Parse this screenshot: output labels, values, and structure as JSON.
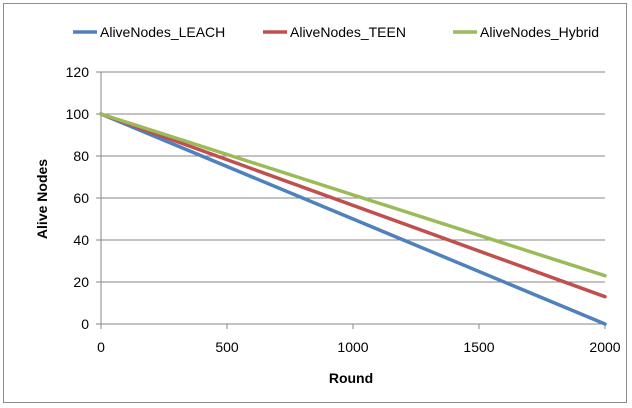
{
  "chart_data": {
    "type": "line",
    "xlabel": "Round",
    "ylabel": "Alive Nodes",
    "xlim": [
      0,
      2000
    ],
    "ylim": [
      0,
      120
    ],
    "x_ticks": [
      "0",
      "500",
      "1000",
      "1500",
      "2000"
    ],
    "y_ticks": [
      "0",
      "20",
      "40",
      "60",
      "80",
      "100",
      "120"
    ],
    "grid": "horizontal",
    "legend_position": "top",
    "x": [
      0,
      2000
    ],
    "series": [
      {
        "name": "AliveNodes_LEACH",
        "color": "#4f81bd",
        "values": [
          100,
          0
        ]
      },
      {
        "name": "AliveNodes_TEEN",
        "color": "#c0504d",
        "values": [
          100,
          13
        ]
      },
      {
        "name": "AliveNodes_Hybrid",
        "color": "#9bbb59",
        "values": [
          100,
          23
        ]
      }
    ]
  }
}
